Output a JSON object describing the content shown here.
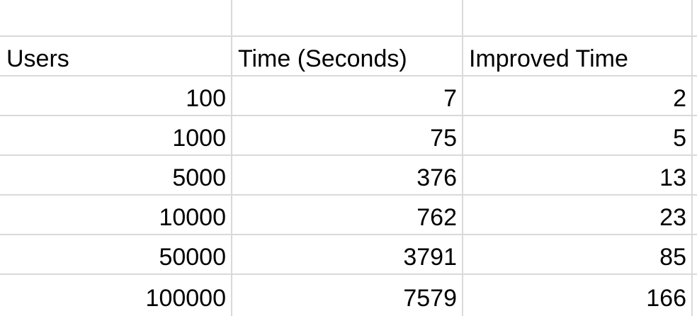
{
  "sheet": {
    "headers": [
      "Users",
      "Time (Seconds)",
      "Improved Time"
    ],
    "rows": [
      [
        "100",
        "7",
        "2"
      ],
      [
        "1000",
        "75",
        "5"
      ],
      [
        "5000",
        "376",
        "13"
      ],
      [
        "10000",
        "762",
        "23"
      ],
      [
        "50000",
        "3791",
        "85"
      ],
      [
        "100000",
        "7579",
        "166"
      ]
    ]
  },
  "colors": {
    "gridline": "#d9d9d9",
    "text": "#000000",
    "background": "#ffffff"
  }
}
